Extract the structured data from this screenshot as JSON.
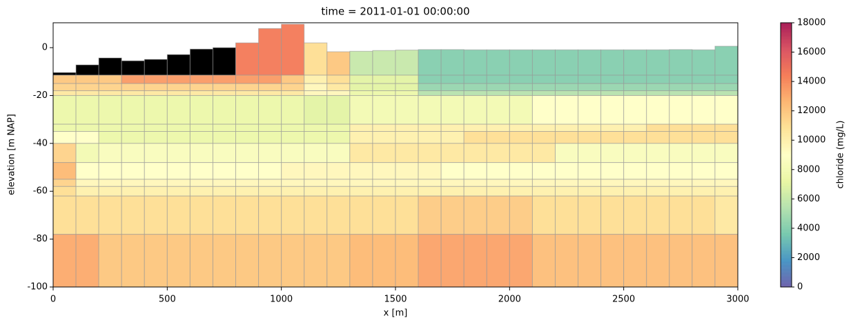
{
  "chart_data": {
    "type": "mesh",
    "title": "time = 2011-01-01 00:00:00",
    "xlabel": "x [m]",
    "ylabel": "elevation [m NAP]",
    "colorbar_label": "chloride (mg/L)",
    "xlim": [
      0,
      3000
    ],
    "ylim": [
      -100,
      10.4
    ],
    "xticks": [
      0,
      500,
      1000,
      1500,
      2000,
      2500,
      3000
    ],
    "yticks": [
      -100,
      -80,
      -60,
      -40,
      -20,
      0
    ],
    "clim": [
      0,
      18000
    ],
    "cticks": [
      0,
      2000,
      4000,
      6000,
      8000,
      10000,
      12000,
      14000,
      16000,
      18000
    ],
    "colormap": [
      "#5e4fa2",
      "#3288bd",
      "#66c2a5",
      "#abdda4",
      "#e6f598",
      "#ffffbf",
      "#fee08b",
      "#fdae61",
      "#f46d43",
      "#d53e4f",
      "#9e0142"
    ],
    "nan_color": "#000000",
    "alpha": 0.85,
    "edgecolor": "#999999",
    "x": [
      0,
      100,
      200,
      300,
      400,
      500,
      600,
      700,
      800,
      900,
      1000,
      1100,
      1200,
      1300,
      1400,
      1500,
      1600,
      1700,
      1800,
      1900,
      2000,
      2100,
      2200,
      2300,
      2400,
      2500,
      2600,
      2700,
      2800,
      2900,
      3000
    ],
    "surface": [
      -10.4,
      -7.2,
      -4.3,
      -5.5,
      -4.9,
      -2.9,
      -0.6,
      0,
      2,
      8,
      9.8,
      2,
      -1.7,
      -1.5,
      -1.2,
      -1,
      -0.8,
      -0.8,
      -0.9,
      -0.9,
      -0.9,
      -0.9,
      -0.9,
      -0.9,
      -0.9,
      -0.9,
      -0.9,
      -0.8,
      -0.9,
      0.6
    ],
    "surface_values": [
      null,
      null,
      null,
      null,
      null,
      null,
      null,
      null,
      14500,
      14500,
      14500,
      11000,
      12000,
      6000,
      6000,
      6000,
      4000,
      4000,
      4000,
      4000,
      4000,
      4000,
      4000,
      4000,
      4000,
      4000,
      4000,
      4000,
      4000,
      4000
    ],
    "layer_edges": [
      -11.5,
      -15,
      -18,
      -20,
      -32,
      -35,
      -40,
      -48,
      -55,
      -58,
      -62,
      -78,
      -100
    ],
    "layer_values": [
      [
        12000,
        12000,
        12000,
        13500,
        13500,
        13500,
        13500,
        13500,
        13500,
        13500,
        12000,
        10000,
        11000,
        7000,
        7000,
        7000,
        4000,
        4000,
        4000,
        4000,
        4000,
        4000,
        4000,
        4000,
        4000,
        4000,
        4000,
        4000,
        4000,
        4000
      ],
      [
        11500,
        11500,
        11500,
        11500,
        11500,
        11500,
        11500,
        11500,
        11500,
        11500,
        11500,
        9500,
        10500,
        7000,
        7000,
        7000,
        4500,
        4500,
        4500,
        4500,
        4500,
        4500,
        4500,
        4500,
        4500,
        4500,
        4500,
        4500,
        4500,
        4500
      ],
      [
        10500,
        10500,
        10500,
        10500,
        10500,
        10500,
        10500,
        10500,
        10500,
        10500,
        10500,
        9500,
        9500,
        7500,
        7500,
        7500,
        5500,
        5500,
        5500,
        5500,
        5500,
        5500,
        5500,
        5500,
        5500,
        5500,
        5500,
        5500,
        5500,
        5500
      ],
      [
        7500,
        7500,
        7500,
        7500,
        7500,
        7500,
        7500,
        7500,
        7500,
        7500,
        7500,
        7000,
        7000,
        8000,
        8000,
        8000,
        8000,
        8000,
        8000,
        8000,
        8000,
        9000,
        9000,
        9000,
        9000,
        9000,
        9000,
        9000,
        9000,
        9000
      ],
      [
        7500,
        7500,
        7500,
        7500,
        7500,
        7500,
        7500,
        7500,
        7500,
        7500,
        7500,
        7500,
        7500,
        10000,
        10000,
        10000,
        10000,
        10000,
        10000,
        10000,
        10000,
        10000,
        10000,
        10000,
        10000,
        10000,
        11000,
        11000,
        11000,
        11000
      ],
      [
        9000,
        9000,
        7500,
        7500,
        7500,
        7500,
        7500,
        7500,
        7500,
        7500,
        7500,
        7500,
        7500,
        10000,
        10000,
        10000,
        10000,
        10000,
        11000,
        11000,
        11000,
        11000,
        11000,
        11000,
        11000,
        11000,
        11000,
        11000,
        11000,
        11000
      ],
      [
        11500,
        8000,
        8500,
        8500,
        8500,
        8500,
        8500,
        8500,
        8500,
        8500,
        8500,
        8500,
        8500,
        10500,
        10500,
        10500,
        10500,
        10500,
        10500,
        10500,
        10500,
        10500,
        8500,
        8500,
        8500,
        8500,
        8500,
        8500,
        8500,
        8500
      ],
      [
        12500,
        9000,
        9000,
        9000,
        9000,
        9000,
        9000,
        9000,
        9000,
        9000,
        9500,
        9500,
        9500,
        9500,
        9500,
        9500,
        9500,
        9000,
        9000,
        9000,
        9000,
        9000,
        9000,
        9000,
        9000,
        9000,
        9000,
        9000,
        9000,
        9000
      ],
      [
        11500,
        9500,
        9500,
        9500,
        9500,
        9500,
        9500,
        9500,
        9500,
        9500,
        9500,
        9500,
        9500,
        9500,
        9500,
        9500,
        9500,
        9500,
        9500,
        9500,
        9500,
        9500,
        9500,
        9500,
        9500,
        9500,
        9500,
        9500,
        9500,
        9500
      ],
      [
        11000,
        10000,
        10000,
        10000,
        10000,
        10000,
        10000,
        10000,
        10000,
        10000,
        10000,
        10000,
        10000,
        10000,
        10000,
        10000,
        10000,
        10000,
        10000,
        10000,
        10000,
        10000,
        10000,
        10000,
        10000,
        10000,
        10000,
        10000,
        10000,
        10000
      ],
      [
        11000,
        11000,
        11000,
        11000,
        11000,
        11000,
        11000,
        11000,
        11000,
        11000,
        11000,
        11000,
        11000,
        11000,
        11000,
        11000,
        11800,
        11800,
        11800,
        11800,
        11800,
        11000,
        11000,
        11000,
        11000,
        11000,
        11000,
        11000,
        11000,
        10500
      ],
      [
        13000,
        13000,
        12000,
        12000,
        12000,
        12000,
        12000,
        12000,
        12000,
        12000,
        12000,
        12000,
        12000,
        12500,
        12500,
        12500,
        13200,
        13200,
        13200,
        13200,
        13200,
        12300,
        12300,
        12300,
        12300,
        12300,
        12300,
        12300,
        12300,
        12300
      ]
    ]
  }
}
